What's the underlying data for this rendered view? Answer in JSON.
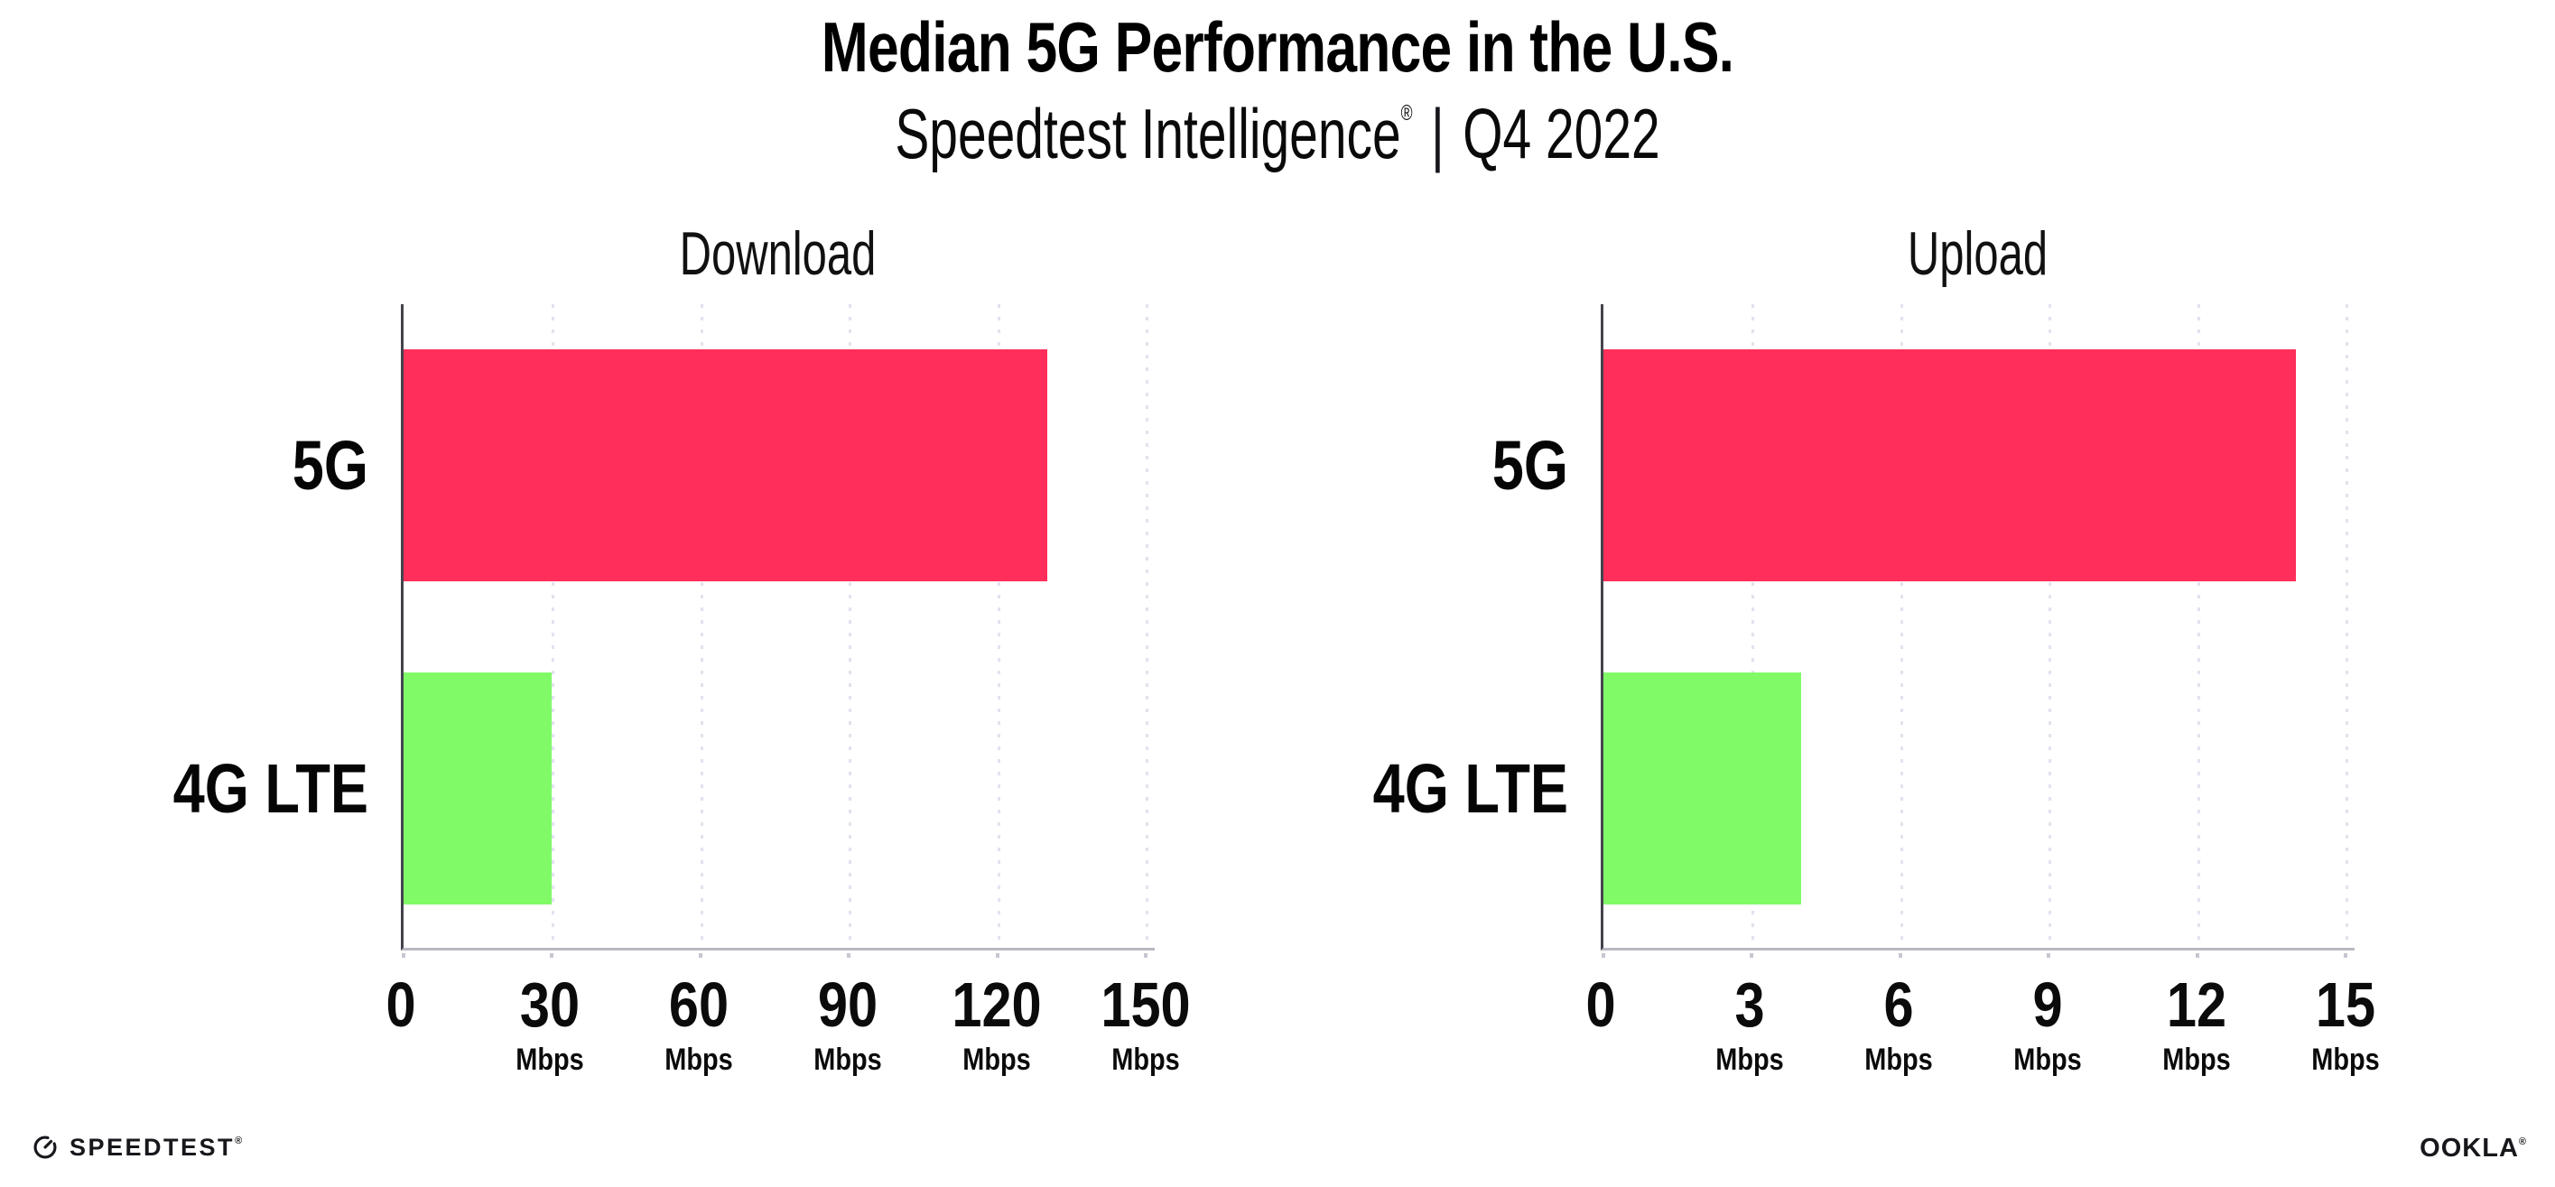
{
  "header": {
    "title": "Median 5G Performance in the U.S.",
    "subtitle_brand": "Speedtest Intelligence",
    "subtitle_reg": "®",
    "subtitle_divider": "|",
    "subtitle_period": "Q4 2022"
  },
  "chart_data": [
    {
      "type": "bar",
      "orientation": "horizontal",
      "title": "Download",
      "categories": [
        "5G",
        "4G LTE"
      ],
      "values": [
        130,
        30
      ],
      "unit": "Mbps",
      "xticks": [
        0,
        30,
        60,
        90,
        120,
        150
      ],
      "xlim": [
        0,
        151.8
      ],
      "grid": "vertical-dotted",
      "legend": "none",
      "bar_colors": [
        "#ff2e5a",
        "#80fb67"
      ]
    },
    {
      "type": "bar",
      "orientation": "horizontal",
      "title": "Upload",
      "categories": [
        "5G",
        "4G LTE"
      ],
      "values": [
        14,
        4
      ],
      "unit": "Mbps",
      "xticks": [
        0,
        3,
        6,
        9,
        12,
        15
      ],
      "xlim": [
        0,
        15.18
      ],
      "grid": "vertical-dotted",
      "legend": "none",
      "bar_colors": [
        "#ff2e5a",
        "#80fb67"
      ]
    }
  ],
  "colors": {
    "bar_5g": "#ff2e5a",
    "bar_4g_lte": "#80fb67",
    "y_axis_line": "#44444e",
    "x_axis_line": "#b9b9c3",
    "gridline": "#e2e2ee"
  },
  "footer": {
    "speedtest_label": "SPEEDTEST",
    "speedtest_reg": "®",
    "ookla_label": "OOKLA",
    "ookla_reg": "®"
  }
}
